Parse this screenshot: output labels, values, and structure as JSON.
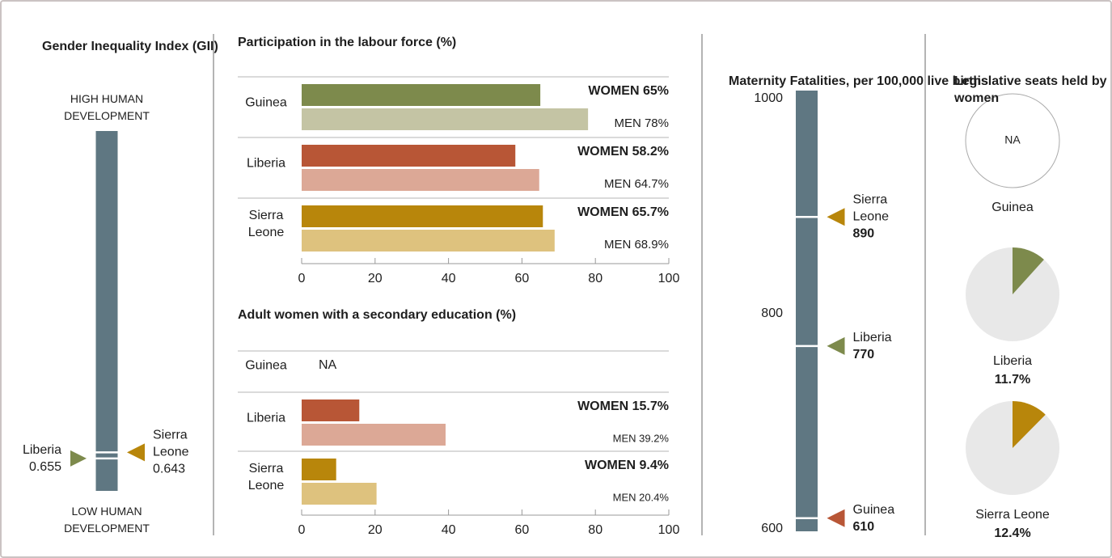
{
  "chart_data": [
    {
      "type": "scale",
      "title": "Gender Inequality Index (GII)",
      "top_label": "HIGH HUMAN DEVELOPMENT",
      "bottom_label": "LOW HUMAN DEVELOPMENT",
      "categories": [
        "Liberia",
        "Sierra Leone"
      ],
      "values": [
        0.655,
        0.643
      ],
      "colors": [
        "#7d8a4c",
        "#b8860b"
      ],
      "color": "#5f7782",
      "ylim": [
        0,
        0.72
      ],
      "inverted": true
    },
    {
      "type": "bar",
      "title": "Participation in the labour force (%)",
      "categories": [
        "Guinea",
        "Liberia",
        "Sierra Leone"
      ],
      "series": [
        {
          "values": [
            65,
            58.2,
            65.7
          ],
          "value_labels": [
            "WOMEN 65%",
            "WOMEN 58.2%",
            "WOMEN 65.7%"
          ],
          "colors": [
            "#7d8a4c",
            "#b85636",
            "#b8860b"
          ]
        },
        {
          "values": [
            78,
            64.7,
            68.9
          ],
          "value_labels": [
            "MEN 78%",
            "MEN 64.7%",
            "MEN 68.9%"
          ],
          "colors": [
            "#c4c4a4",
            "#dca896",
            "#dec27e"
          ]
        }
      ],
      "xlim": [
        0,
        100
      ],
      "xticks": [
        0,
        20,
        40,
        60,
        80,
        100
      ]
    },
    {
      "type": "bar",
      "title": "Adult women with a secondary education (%)",
      "categories": [
        "Guinea",
        "Liberia",
        "Sierra Leone"
      ],
      "series": [
        {
          "values": [
            null,
            15.7,
            9.4
          ],
          "value_labels": [
            "NA",
            "WOMEN 15.7%",
            "WOMEN 9.4%"
          ],
          "colors": [
            "#7d8a4c",
            "#b85636",
            "#b8860b"
          ]
        },
        {
          "values": [
            null,
            39.2,
            20.4
          ],
          "value_labels": [
            null,
            "MEN 39.2%",
            "MEN 20.4%"
          ],
          "colors": [
            "#c4c4a4",
            "#dca896",
            "#dec27e"
          ]
        }
      ],
      "xlim": [
        0,
        100
      ],
      "xticks": [
        0,
        20,
        40,
        60,
        80,
        100
      ]
    },
    {
      "type": "scale",
      "title": "Maternity Fatalities, per 100,000 live births",
      "categories": [
        "Sierra Leone",
        "Liberia",
        "Guinea"
      ],
      "values": [
        890,
        770,
        610
      ],
      "colors": [
        "#b8860b",
        "#7d8a4c",
        "#b85636"
      ],
      "color": "#5f7782",
      "ylim": [
        600,
        1000
      ],
      "yticks": [
        600,
        800,
        1000
      ]
    },
    {
      "type": "pie",
      "title": "Legislative seats held by women",
      "categories": [
        "Guinea",
        "Liberia",
        "Sierra Leone"
      ],
      "values": [
        null,
        11.7,
        12.4
      ],
      "value_labels": [
        "NA",
        "11.7%",
        "12.4%"
      ],
      "colors": [
        "#ffffff",
        "#7d8a4c",
        "#b8860b"
      ],
      "background_color": "#e8e8e8"
    }
  ]
}
